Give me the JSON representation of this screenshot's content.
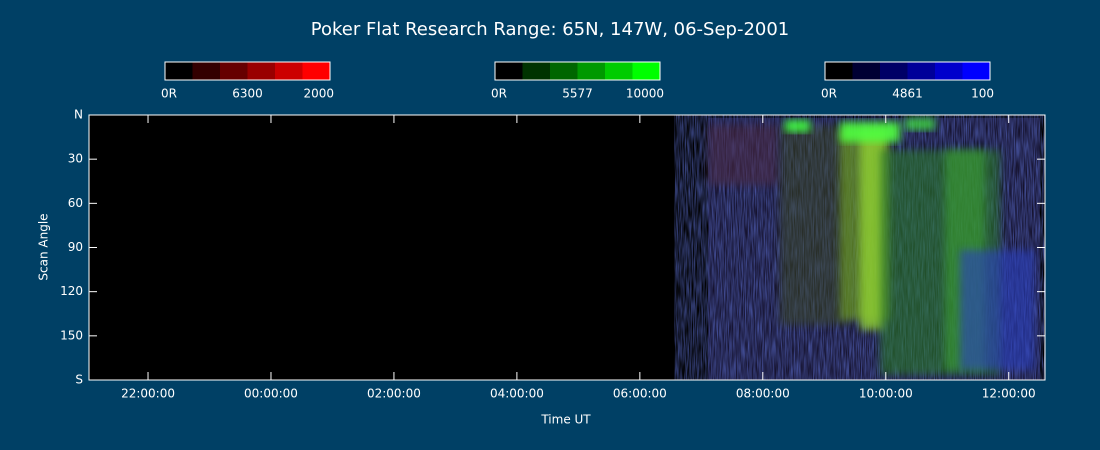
{
  "chart_data": {
    "type": "keogram",
    "title": "Poker Flat Research Range: 65N, 147W, 06-Sep-2001",
    "xlabel": "Time UT",
    "ylabel": "Scan Angle",
    "xlim": [
      -2.96,
      12.59
    ],
    "xticks": [
      {
        "value": -2,
        "label": "22:00:00"
      },
      {
        "value": 0,
        "label": "00:00:00"
      },
      {
        "value": 2,
        "label": "02:00:00"
      },
      {
        "value": 4,
        "label": "04:00:00"
      },
      {
        "value": 6,
        "label": "06:00:00"
      },
      {
        "value": 8,
        "label": "08:00:00"
      },
      {
        "value": 10,
        "label": "10:00:00"
      },
      {
        "value": 12,
        "label": "12:00:00"
      }
    ],
    "ylim": [
      0,
      180
    ],
    "yticks": [
      {
        "value": 0,
        "label": "N"
      },
      30,
      60,
      90,
      120,
      150,
      {
        "value": 180,
        "label": "S"
      }
    ],
    "colorbars": [
      {
        "name": "6300",
        "min_label": "0R",
        "max": 2000,
        "colors": [
          "#000000",
          "#330000",
          "#660000",
          "#990000",
          "#cc0000",
          "#ff0000"
        ]
      },
      {
        "name": "5577",
        "min_label": "0R",
        "max": 10000,
        "colors": [
          "#000000",
          "#003300",
          "#006600",
          "#009900",
          "#00cc00",
          "#00ff00"
        ]
      },
      {
        "name": "4861",
        "min_label": "0R",
        "max": 100,
        "colors": [
          "#000000",
          "#000033",
          "#000066",
          "#000099",
          "#0000cc",
          "#0000ff"
        ]
      }
    ]
  }
}
